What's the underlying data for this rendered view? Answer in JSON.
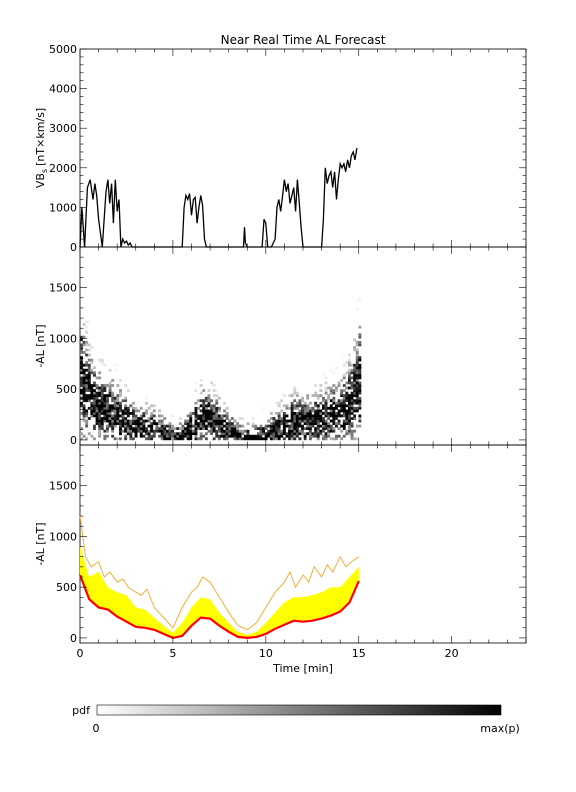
{
  "chart_data": [
    {
      "type": "line",
      "title": "Near Real Time AL Forecast",
      "ylabel": "VB",
      "ylabel_sub": "s",
      "ylabel_unit": "[nT×km/s]",
      "xlim": [
        0,
        24
      ],
      "ylim": [
        0,
        5000
      ],
      "yticks": [
        0,
        1000,
        2000,
        3000,
        4000,
        5000
      ],
      "grid": false,
      "series": [
        {
          "color": "#000000",
          "x": [
            0.0,
            0.1,
            0.25,
            0.4,
            0.55,
            0.7,
            0.8,
            0.9,
            1.0,
            1.2,
            1.4,
            1.5,
            1.6,
            1.7,
            1.8,
            1.9,
            2.0,
            2.1,
            2.2,
            2.3,
            2.4,
            2.5,
            2.6,
            2.7,
            2.8,
            3.0,
            3.2,
            3.4,
            5.5,
            5.6,
            5.7,
            5.8,
            5.9,
            6.0,
            6.1,
            6.2,
            6.3,
            6.4,
            6.5,
            6.6,
            6.7,
            6.8,
            7.0,
            8.8,
            8.85,
            8.9,
            9.0,
            9.8,
            9.9,
            10.0,
            10.1,
            10.2,
            10.3,
            10.5,
            10.6,
            10.7,
            10.8,
            10.9,
            11.0,
            11.1,
            11.2,
            11.3,
            11.4,
            11.5,
            11.6,
            11.7,
            11.8,
            11.9,
            12.0,
            12.2,
            12.5,
            12.8,
            13.0,
            13.1,
            13.2,
            13.3,
            13.4,
            13.5,
            13.6,
            13.7,
            13.8,
            13.9,
            14.0,
            14.1,
            14.2,
            14.3,
            14.4,
            14.5,
            14.6,
            14.7,
            14.8,
            14.9
          ],
          "y": [
            0,
            1000,
            0,
            1500,
            1700,
            1200,
            1600,
            1300,
            700,
            0,
            1400,
            1700,
            1100,
            1600,
            600,
            1700,
            900,
            1200,
            0,
            200,
            100,
            150,
            50,
            100,
            0,
            0,
            0,
            0,
            0,
            1000,
            1300,
            1200,
            1350,
            800,
            1200,
            1250,
            600,
            1000,
            1300,
            1050,
            200,
            0,
            0,
            0,
            500,
            100,
            0,
            0,
            700,
            600,
            0,
            0,
            0,
            200,
            1000,
            1200,
            900,
            1300,
            1700,
            1400,
            1600,
            1100,
            1300,
            1500,
            900,
            1700,
            1100,
            500,
            0,
            0,
            0,
            0,
            0,
            700,
            2000,
            1600,
            1800,
            1900,
            1500,
            1900,
            1200,
            1700,
            2100,
            2000,
            2100,
            1900,
            2200,
            2000,
            2300,
            2400,
            2200,
            2500
          ]
        }
      ]
    },
    {
      "type": "heatmap",
      "ylabel": "-AL [nT]",
      "xlim": [
        0,
        24
      ],
      "ylim": [
        -50,
        1900
      ],
      "yticks": [
        0,
        500,
        1000,
        1500
      ],
      "grid": false,
      "colorscale": {
        "min_color": "#ffffff",
        "max_color": "#000000"
      }
    },
    {
      "type": "area",
      "ylabel": "-AL [nT]",
      "xlabel": "Time [min]",
      "xlim": [
        0,
        24
      ],
      "ylim": [
        -50,
        1900
      ],
      "yticks": [
        0,
        500,
        1000,
        1500
      ],
      "xticks": [
        0,
        5,
        10,
        15,
        20
      ],
      "grid": false,
      "series": [
        {
          "color": "#ff0000",
          "x": [
            0,
            0.5,
            1,
            1.5,
            2,
            2.5,
            3,
            3.5,
            4,
            4.5,
            5,
            5.5,
            6,
            6.5,
            7,
            7.5,
            8,
            8.5,
            9,
            9.5,
            10,
            10.5,
            11,
            11.5,
            12,
            12.5,
            13,
            13.5,
            14,
            14.5,
            15
          ],
          "y": [
            620,
            380,
            300,
            280,
            210,
            160,
            110,
            100,
            80,
            40,
            0,
            20,
            120,
            200,
            190,
            120,
            60,
            10,
            0,
            10,
            40,
            90,
            130,
            170,
            160,
            170,
            190,
            220,
            260,
            350,
            560
          ]
        },
        {
          "color": "#ffff00",
          "x": [
            0,
            0.5,
            1,
            1.5,
            2,
            2.5,
            3,
            3.5,
            4,
            4.5,
            5,
            5.5,
            6,
            6.5,
            7,
            7.5,
            8,
            8.5,
            9,
            9.5,
            10,
            10.5,
            11,
            11.5,
            12,
            12.5,
            13,
            13.5,
            14,
            14.5,
            15
          ],
          "y": [
            900,
            600,
            650,
            500,
            450,
            420,
            300,
            280,
            200,
            120,
            50,
            150,
            300,
            400,
            380,
            250,
            150,
            60,
            30,
            60,
            150,
            250,
            350,
            400,
            400,
            420,
            450,
            500,
            500,
            600,
            700
          ]
        },
        {
          "color": "#f5a623",
          "x": [
            0,
            0.3,
            0.6,
            1,
            1.3,
            1.6,
            2,
            2.3,
            2.6,
            3,
            3.3,
            3.6,
            4,
            4.5,
            5,
            5.5,
            6,
            6.3,
            6.6,
            7,
            7.5,
            8,
            8.5,
            9,
            9.5,
            10,
            10.5,
            11,
            11.3,
            11.6,
            12,
            12.3,
            12.6,
            13,
            13.3,
            13.6,
            14,
            14.3,
            14.6,
            15
          ],
          "y": [
            1200,
            800,
            700,
            750,
            600,
            650,
            550,
            580,
            500,
            450,
            420,
            480,
            300,
            200,
            100,
            300,
            450,
            500,
            600,
            550,
            400,
            250,
            120,
            80,
            150,
            300,
            450,
            550,
            650,
            500,
            620,
            550,
            700,
            600,
            720,
            650,
            800,
            700,
            750,
            800
          ]
        }
      ]
    },
    {
      "type": "heatmap",
      "legend_title": "pdf",
      "scale_min_label": "0",
      "scale_max_label": "max(p)"
    }
  ]
}
